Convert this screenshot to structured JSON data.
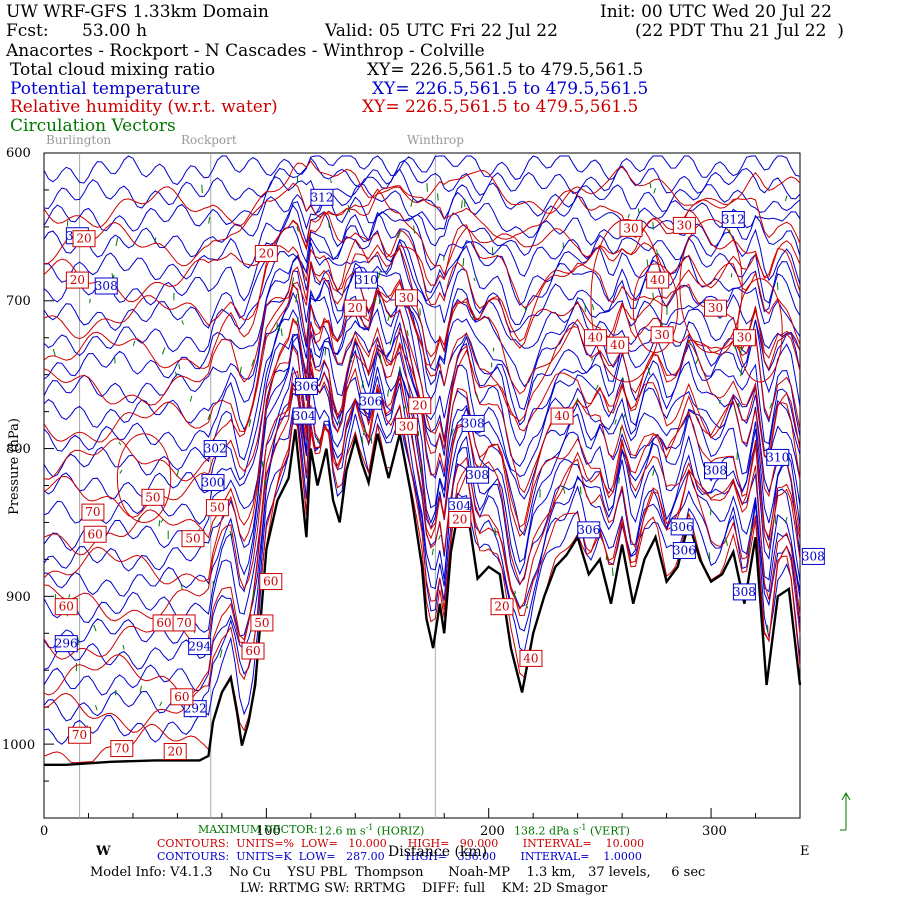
{
  "header": {
    "title": "UW WRF-GFS 1.33km Domain",
    "init": "Init: 00 UTC Wed 20 Jul 22",
    "fcst_label": "Fcst:",
    "fcst_value": "53.00 h",
    "valid": "Valid: 05 UTC Fri 22 Jul 22",
    "valid_local": "(22 PDT Thu 21 Jul 22  )",
    "route": "Anacortes - Rockport - N Cascades - Winthrop - Colville"
  },
  "fields": [
    {
      "name": "Total cloud mixing ratio",
      "xy": "XY= 226.5,561.5 to 479.5,561.5",
      "color": "#000000"
    },
    {
      "name": "Potential temperature",
      "xy": "XY= 226.5,561.5 to 479.5,561.5",
      "color": "#0000cc"
    },
    {
      "name": "Relative humidity (w.r.t. water)",
      "xy": "XY= 226.5,561.5 to 479.5,561.5",
      "color": "#cc0000"
    },
    {
      "name": "Circulation Vectors",
      "xy": "",
      "color": "#007700"
    }
  ],
  "places": [
    "Burlington",
    "Rockport",
    "Winthrop"
  ],
  "chart_data": {
    "type": "line",
    "title": "Vertical cross section",
    "xlabel": "Distance (km)",
    "ylabel": "Pressure (hPa)",
    "xlim": [
      0,
      340
    ],
    "ylim": [
      1050,
      600
    ],
    "x_ticks": [
      0,
      100,
      200,
      300
    ],
    "y_ticks": [
      600,
      700,
      800,
      900,
      1000
    ],
    "x_tick_labels": [
      "0",
      "100",
      "200",
      "300"
    ],
    "y_tick_labels": [
      "600",
      "700",
      "800",
      "900",
      "1000"
    ],
    "place_km": [
      {
        "name": "Burlington",
        "km": 16
      },
      {
        "name": "Rockport",
        "km": 75
      },
      {
        "name": "Winthrop",
        "km": 176
      }
    ],
    "terrain": {
      "x": [
        0,
        10,
        30,
        50,
        60,
        70,
        74,
        76,
        80,
        84,
        87,
        89,
        92,
        95,
        98,
        100,
        105,
        110,
        113,
        116,
        118,
        120,
        123,
        127,
        130,
        133,
        136,
        140,
        143,
        146,
        150,
        155,
        160,
        165,
        170,
        172,
        175,
        178,
        180,
        183,
        186,
        190,
        195,
        200,
        205,
        210,
        215,
        220,
        225,
        230,
        235,
        240,
        245,
        250,
        255,
        260,
        265,
        270,
        275,
        280,
        285,
        290,
        295,
        300,
        305,
        310,
        315,
        320,
        325,
        330,
        335,
        340
      ],
      "p": [
        1014,
        1014,
        1012,
        1011,
        1011,
        1011,
        1008,
        985,
        965,
        955,
        980,
        1001,
        985,
        960,
        905,
        868,
        835,
        820,
        787,
        830,
        860,
        800,
        825,
        800,
        835,
        850,
        815,
        793,
        810,
        823,
        790,
        820,
        790,
        830,
        880,
        915,
        935,
        905,
        925,
        870,
        845,
        838,
        888,
        880,
        885,
        935,
        965,
        925,
        900,
        880,
        872,
        860,
        885,
        875,
        905,
        865,
        905,
        875,
        860,
        890,
        880,
        850,
        875,
        890,
        885,
        870,
        905,
        860,
        960,
        900,
        895,
        960
      ]
    },
    "potential_temperature": {
      "units": "K",
      "low": 287.0,
      "high": 336.0,
      "interval": 1.0,
      "labels": [
        "312",
        "310",
        "312",
        "308",
        "310",
        "306",
        "306",
        "304",
        "302",
        "300",
        "308",
        "308",
        "304",
        "306",
        "306",
        "308",
        "306",
        "308",
        "296",
        "294",
        "292",
        "310",
        "308"
      ]
    },
    "relative_humidity": {
      "units": "%",
      "low": 10.0,
      "high": 90.0,
      "interval": 10.0,
      "labels": [
        "20",
        "20",
        "20",
        "30",
        "20",
        "30",
        "30",
        "40",
        "40",
        "30",
        "40",
        "30",
        "30",
        "40",
        "50",
        "70",
        "60",
        "50",
        "50",
        "60",
        "60",
        "70",
        "60",
        "50",
        "60",
        "60",
        "70",
        "70",
        "20",
        "20",
        "20",
        "40",
        "30",
        "20"
      ]
    },
    "max_vector": {
      "horiz": "12.6 m s⁻¹ (HORIZ)",
      "vert": "138.2 dPa s⁻¹ (VERT)"
    }
  },
  "x_ends": {
    "left": "W",
    "right": "E"
  },
  "footer": {
    "max_vector_label": "MAXIMUM VECTOR:",
    "max_vector_horiz": "12.6 m s",
    "max_vector_horiz_units": "(HORIZ)",
    "max_vector_vert": "138.2 dPa s",
    "max_vector_vert_units": "(VERT)",
    "rh_contours": "CONTOURS:  UNITS=%  LOW=   10.000      HIGH=   90.000       INTERVAL=    10.000",
    "th_contours": "CONTOURS:  UNITS=K  LOW=   287.00      HIGH=   336.00       INTERVAL=    1.0000",
    "xlabel": "Distance (km)",
    "model_info": "Model Info: V4.1.3    No Cu    YSU PBL  Thompson      Noah-MP    1.3 km,   37 levels,     6 sec",
    "model_info2": "LW: RRTMG SW: RRTMG    DIFF: full    KM: 2D Smagor"
  }
}
